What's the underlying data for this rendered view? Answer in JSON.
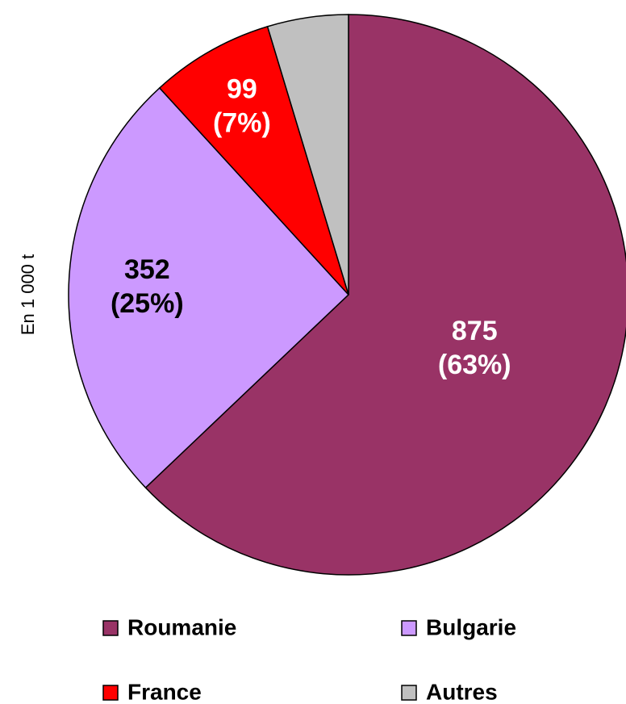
{
  "chart_data": {
    "type": "pie",
    "axis_label": "En 1 000 t",
    "categories": [
      "Roumanie",
      "Bulgarie",
      "France",
      "Autres"
    ],
    "values": [
      875,
      352,
      99,
      65
    ],
    "colors": [
      "#993366",
      "#cc99ff",
      "#ff0000",
      "#c0c0c0"
    ],
    "percent_labels": [
      "(63%)",
      "(25%)",
      "(7%)",
      null
    ],
    "value_labels": [
      "875",
      "352",
      "99",
      null
    ],
    "start_angle": 0,
    "direction": "clockwise",
    "legend": "bottom"
  }
}
